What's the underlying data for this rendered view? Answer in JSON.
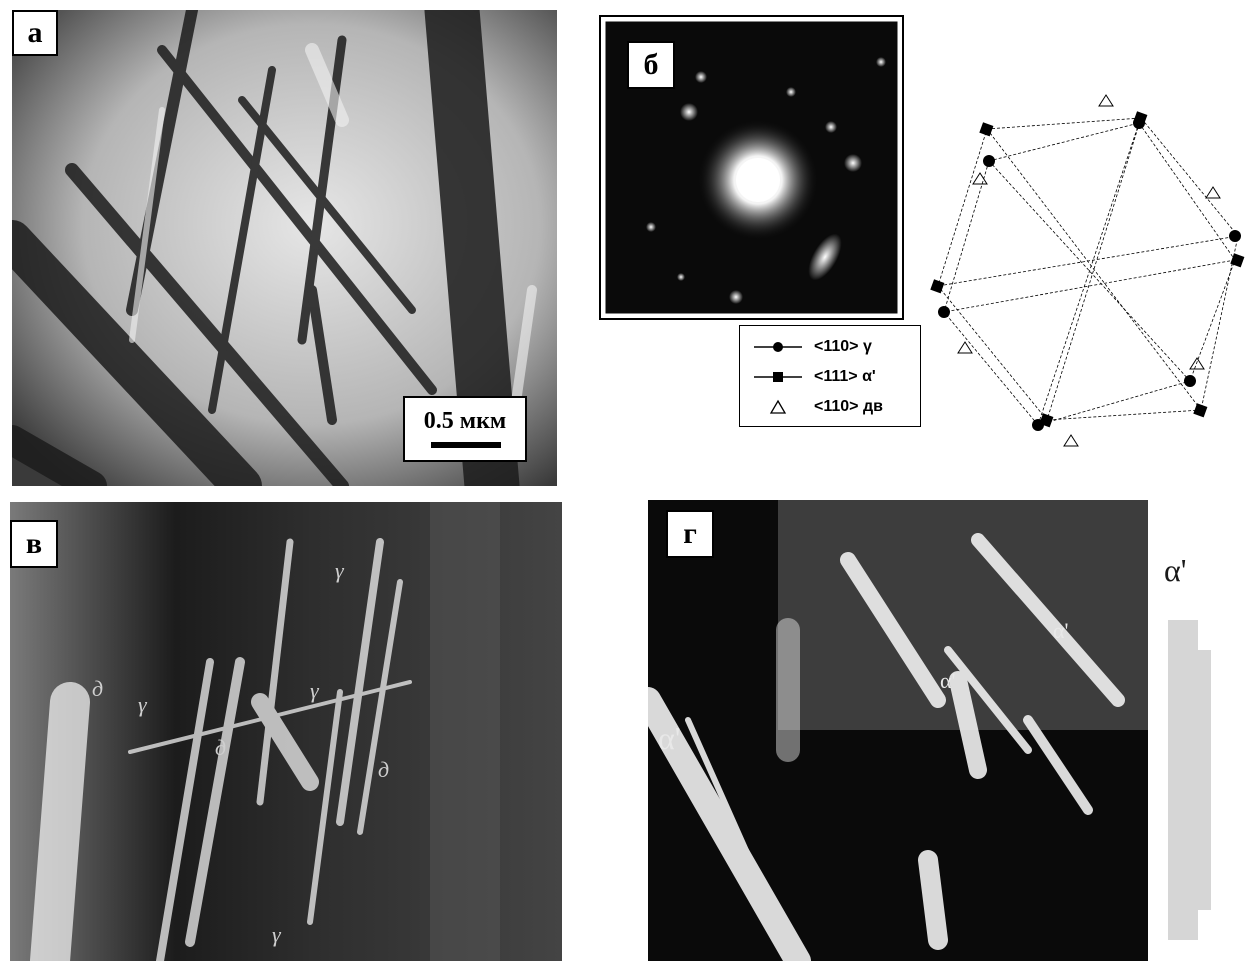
{
  "panels": {
    "a": {
      "label": "а",
      "scale_text": "0.5 мкм"
    },
    "b": {
      "label": "б",
      "legend": [
        {
          "marker": "circle",
          "text": "<110> γ"
        },
        {
          "marker": "square",
          "text": "<111> α'"
        },
        {
          "marker": "triangle",
          "text": "<110> дв"
        }
      ]
    },
    "v": {
      "label": "в",
      "annotations": [
        "д",
        "γ",
        "д",
        "γ",
        "γ",
        "д",
        "γ"
      ]
    },
    "g": {
      "label": "г",
      "annotations": [
        "α'",
        "α'",
        "α'",
        "α'"
      ]
    }
  }
}
